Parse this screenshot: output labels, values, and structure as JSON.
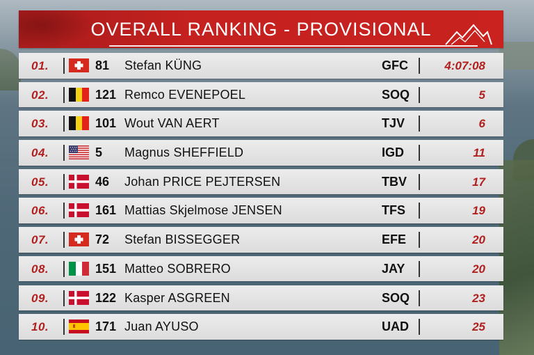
{
  "header": {
    "title": "OVERALL RANKING - PROVISIONAL"
  },
  "colors": {
    "accent": "#c4211f",
    "row_bg": "#e4e4e4",
    "position_text": "#b0201e"
  },
  "standings": [
    {
      "position": "01.",
      "flag": "switzerland-flag-icon",
      "bib": "81",
      "name": "Stefan KÜNG",
      "team": "GFC",
      "gap": "4:07:08"
    },
    {
      "position": "02.",
      "flag": "belgium-flag-icon",
      "bib": "121",
      "name": "Remco EVENEPOEL",
      "team": "SOQ",
      "gap": "5"
    },
    {
      "position": "03.",
      "flag": "belgium-flag-icon",
      "bib": "101",
      "name": "Wout VAN AERT",
      "team": "TJV",
      "gap": "6"
    },
    {
      "position": "04.",
      "flag": "usa-flag-icon",
      "bib": "5",
      "name": "Magnus SHEFFIELD",
      "team": "IGD",
      "gap": "11"
    },
    {
      "position": "05.",
      "flag": "denmark-flag-icon",
      "bib": "46",
      "name": "Johan PRICE PEJTERSEN",
      "team": "TBV",
      "gap": "17"
    },
    {
      "position": "06.",
      "flag": "denmark-flag-icon",
      "bib": "161",
      "name": "Mattias Skjelmose JENSEN",
      "team": "TFS",
      "gap": "19"
    },
    {
      "position": "07.",
      "flag": "switzerland-flag-icon",
      "bib": "72",
      "name": "Stefan BISSEGGER",
      "team": "EFE",
      "gap": "20"
    },
    {
      "position": "08.",
      "flag": "italy-flag-icon",
      "bib": "151",
      "name": "Matteo SOBRERO",
      "team": "JAY",
      "gap": "20"
    },
    {
      "position": "09.",
      "flag": "denmark-flag-icon",
      "bib": "122",
      "name": "Kasper ASGREEN",
      "team": "SOQ",
      "gap": "23"
    },
    {
      "position": "10.",
      "flag": "spain-flag-icon",
      "bib": "171",
      "name": "Juan AYUSO",
      "team": "UAD",
      "gap": "25"
    }
  ]
}
